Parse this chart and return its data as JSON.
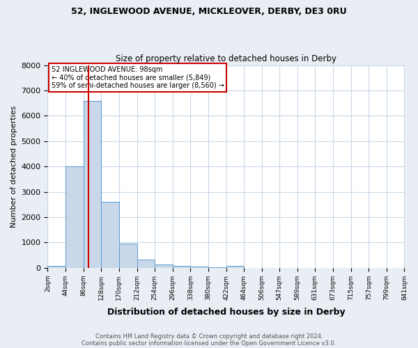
{
  "title1": "52, INGLEWOOD AVENUE, MICKLEOVER, DERBY, DE3 0RU",
  "title2": "Size of property relative to detached houses in Derby",
  "xlabel": "Distribution of detached houses by size in Derby",
  "ylabel": "Number of detached properties",
  "bin_edges": [
    2,
    44,
    86,
    128,
    170,
    212,
    254,
    296,
    338,
    380,
    422,
    464,
    506,
    547,
    589,
    631,
    673,
    715,
    757,
    799,
    841
  ],
  "bar_heights": [
    80,
    4000,
    6600,
    2600,
    950,
    320,
    130,
    90,
    60,
    20,
    70,
    0,
    0,
    0,
    0,
    0,
    0,
    0,
    0,
    0
  ],
  "bar_color": "#c8d8e8",
  "bar_edge_color": "#5b9bd5",
  "property_size": 98,
  "annotation_line1": "52 INGLEWOOD AVENUE: 98sqm",
  "annotation_line2": "← 40% of detached houses are smaller (5,849)",
  "annotation_line3": "59% of semi-detached houses are larger (8,560) →",
  "annotation_box_color": "#ffffff",
  "annotation_box_edge": "#cc0000",
  "vline_color": "#cc0000",
  "ylim": [
    0,
    8000
  ],
  "yticks": [
    0,
    1000,
    2000,
    3000,
    4000,
    5000,
    6000,
    7000,
    8000
  ],
  "footnote1": "Contains HM Land Registry data © Crown copyright and database right 2024.",
  "footnote2": "Contains public sector information licensed under the Open Government Licence v3.0.",
  "bg_color": "#e8eef4",
  "plot_bg_color": "#ffffff",
  "grid_color": "#c8d8e8"
}
